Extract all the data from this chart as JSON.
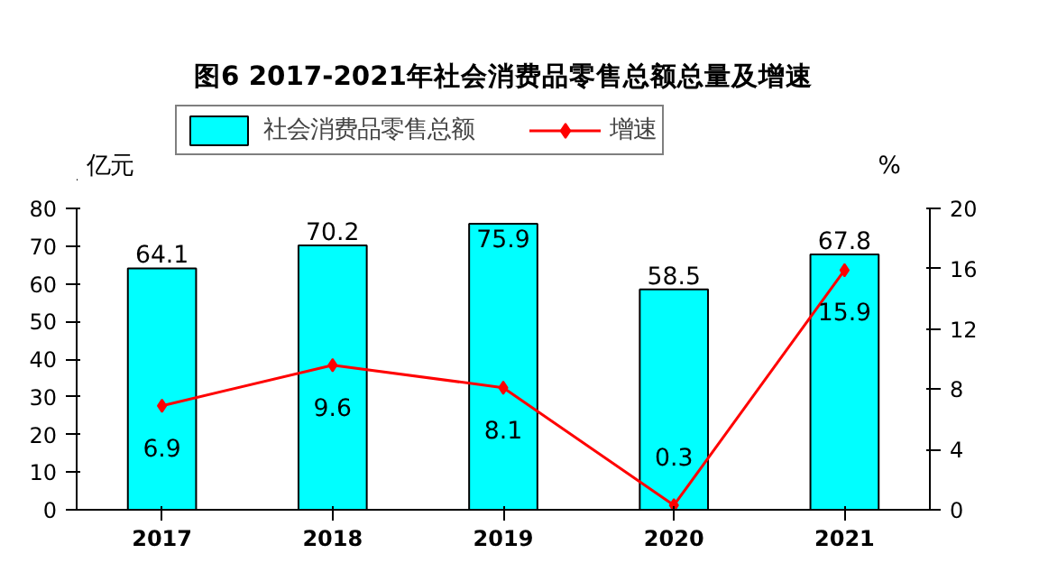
{
  "chart_data": {
    "type": "bar",
    "title": "图6 2017-2021年社会消费品零售总额总量及增速",
    "categories": [
      "2017",
      "2018",
      "2019",
      "2020",
      "2021"
    ],
    "ylabel": "亿元",
    "y2label": "%",
    "ylim": [
      0,
      80
    ],
    "yticks": [
      0,
      10,
      20,
      30,
      40,
      50,
      60,
      70,
      80
    ],
    "y2lim": [
      0,
      20
    ],
    "y2ticks": [
      0,
      4,
      8,
      12,
      16,
      20
    ],
    "grid": false,
    "legend": "top",
    "data_labels": true,
    "series": [
      {
        "name": "社会消费品零售总额",
        "color": "#00ffff",
        "values": [
          64.1,
          70.2,
          75.9,
          58.5,
          67.8
        ]
      },
      {
        "name": "增速",
        "type": "line",
        "axis": "y2",
        "color": "#ff0000",
        "marker": "diamond",
        "values": [
          6.9,
          9.6,
          8.1,
          0.3,
          15.9
        ]
      }
    ]
  }
}
